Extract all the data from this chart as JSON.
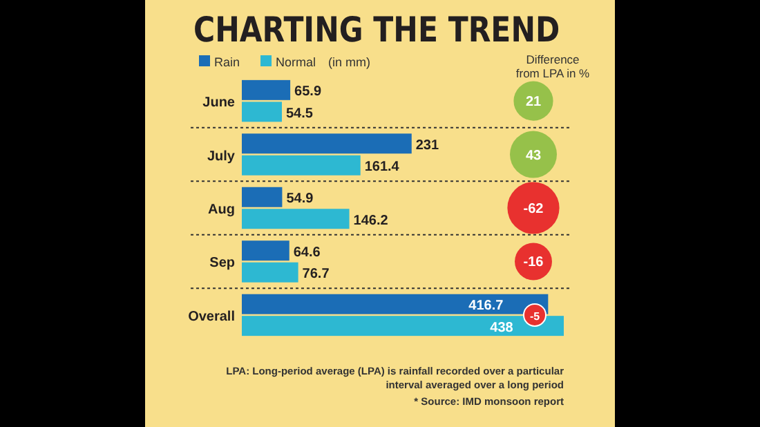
{
  "chart_data": {
    "type": "bar",
    "orientation": "horizontal",
    "title": "CHARTING THE TREND",
    "legend_title": "(in mm)",
    "legend": "top left",
    "data_labels": true,
    "categories": [
      "June",
      "July",
      "Aug",
      "Sep",
      "Overall"
    ],
    "series": [
      {
        "name": "Rain",
        "color": "#1b6db6",
        "values": [
          65.9,
          231,
          54.9,
          64.6,
          416.7
        ]
      },
      {
        "name": "Normal",
        "color": "#2db8d2",
        "values": [
          54.5,
          161.4,
          146.2,
          76.7,
          438
        ]
      }
    ],
    "annotations": [
      "Difference from LPA in %",
      "LPA: Long-period average (LPA) is rainfall recorded over a particular interval averaged over a long period",
      "* Source: IMD monsoon report",
      {
        "text": "21",
        "y": "June"
      },
      {
        "text": "43",
        "y": "July"
      },
      {
        "text": "-62",
        "y": "Aug"
      },
      {
        "text": "-16",
        "y": "Sep"
      },
      {
        "text": "-5",
        "y": "Overall"
      }
    ]
  }
}
